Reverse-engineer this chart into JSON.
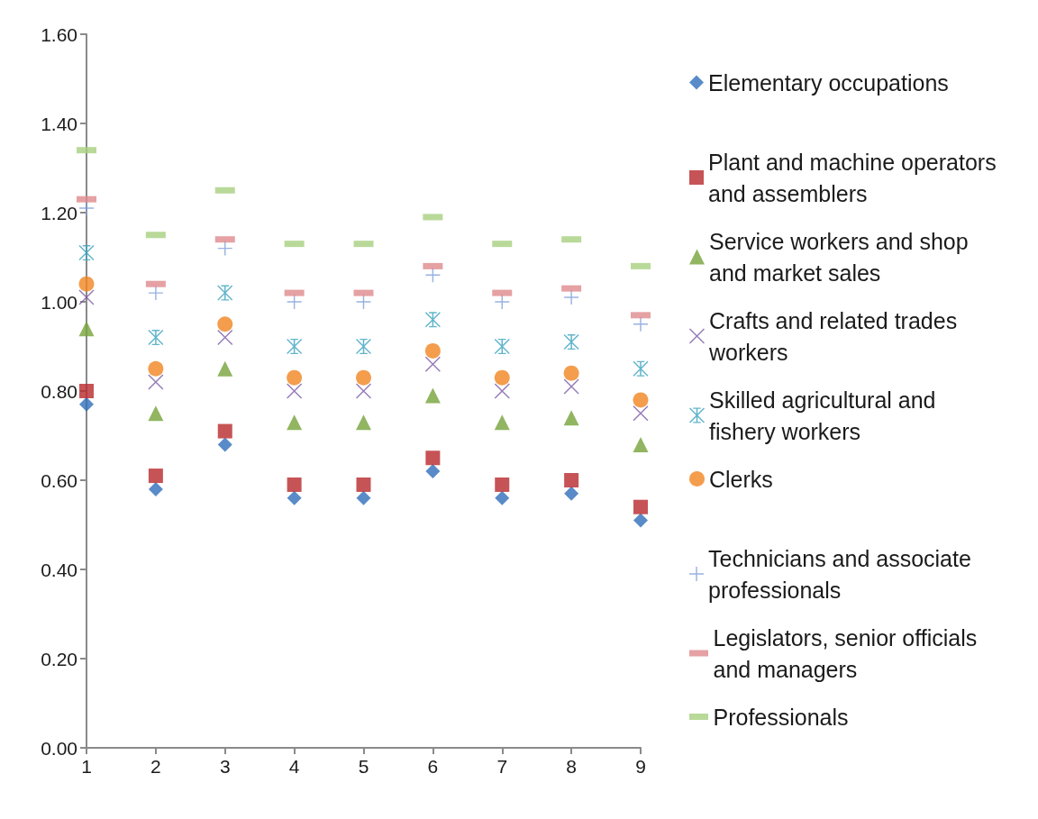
{
  "chart_data": {
    "type": "scatter",
    "x": [
      1,
      2,
      3,
      4,
      5,
      6,
      7,
      8,
      9
    ],
    "xlim": [
      1,
      9
    ],
    "xticks": [
      1,
      2,
      3,
      4,
      5,
      6,
      7,
      8,
      9
    ],
    "ylim": [
      0,
      1.6
    ],
    "yticks": [
      {
        "value": 0,
        "label": "0.00"
      },
      {
        "value": 0.2,
        "label": "0.20"
      },
      {
        "value": 0.4,
        "label": "0.40"
      },
      {
        "value": 0.6,
        "label": "0.60"
      },
      {
        "value": 0.8,
        "label": "0.80"
      },
      {
        "value": 1.0,
        "label": "1.00"
      },
      {
        "value": 1.2,
        "label": "1.20"
      },
      {
        "value": 1.4,
        "label": "1.40"
      },
      {
        "value": 1.6,
        "label": "1.60"
      }
    ],
    "legend": "right",
    "series": [
      {
        "name": "Elementary occupations",
        "color": "#2f6eba",
        "marker": "diamond",
        "values": [
          0.77,
          0.58,
          0.68,
          0.56,
          0.56,
          0.62,
          0.56,
          0.57,
          0.51
        ]
      },
      {
        "name": "Plant and machine operators and assemblers",
        "color": "#b8282c",
        "marker": "square",
        "values": [
          0.8,
          0.61,
          0.71,
          0.59,
          0.59,
          0.65,
          0.59,
          0.6,
          0.54
        ]
      },
      {
        "name": "Service workers and shop and market sales",
        "color": "#76a23a",
        "marker": "triangle",
        "values": [
          0.94,
          0.75,
          0.85,
          0.73,
          0.73,
          0.79,
          0.73,
          0.74,
          0.68
        ]
      },
      {
        "name": "Crafts and related trades workers",
        "color": "#7b5aa6",
        "marker": "x",
        "values": [
          1.01,
          0.82,
          0.92,
          0.8,
          0.8,
          0.86,
          0.8,
          0.81,
          0.75
        ]
      },
      {
        "name": "Skilled agricultural and fishery workers",
        "color": "#3aa3bf",
        "marker": "star",
        "values": [
          1.11,
          0.92,
          1.02,
          0.9,
          0.9,
          0.96,
          0.9,
          0.91,
          0.85
        ]
      },
      {
        "name": "Clerks",
        "color": "#f08421",
        "marker": "circle",
        "values": [
          1.04,
          0.85,
          0.95,
          0.83,
          0.83,
          0.89,
          0.83,
          0.84,
          0.78
        ]
      },
      {
        "name": "Technicians and associate professionals",
        "color": "#7f9fdb",
        "marker": "plus",
        "values": [
          1.21,
          1.02,
          1.12,
          1.0,
          1.0,
          1.06,
          1.0,
          1.01,
          0.95
        ]
      },
      {
        "name": "Legislators, senior officials and managers",
        "color": "#df8a8c",
        "values": [
          1.23,
          1.04,
          1.14,
          1.02,
          1.02,
          1.08,
          1.02,
          1.03,
          0.97
        ]
      },
      {
        "name": "Professionals",
        "color": "#a8d080",
        "values": [
          1.34,
          1.15,
          1.25,
          1.13,
          1.13,
          1.19,
          1.13,
          1.14,
          1.08
        ]
      }
    ]
  }
}
